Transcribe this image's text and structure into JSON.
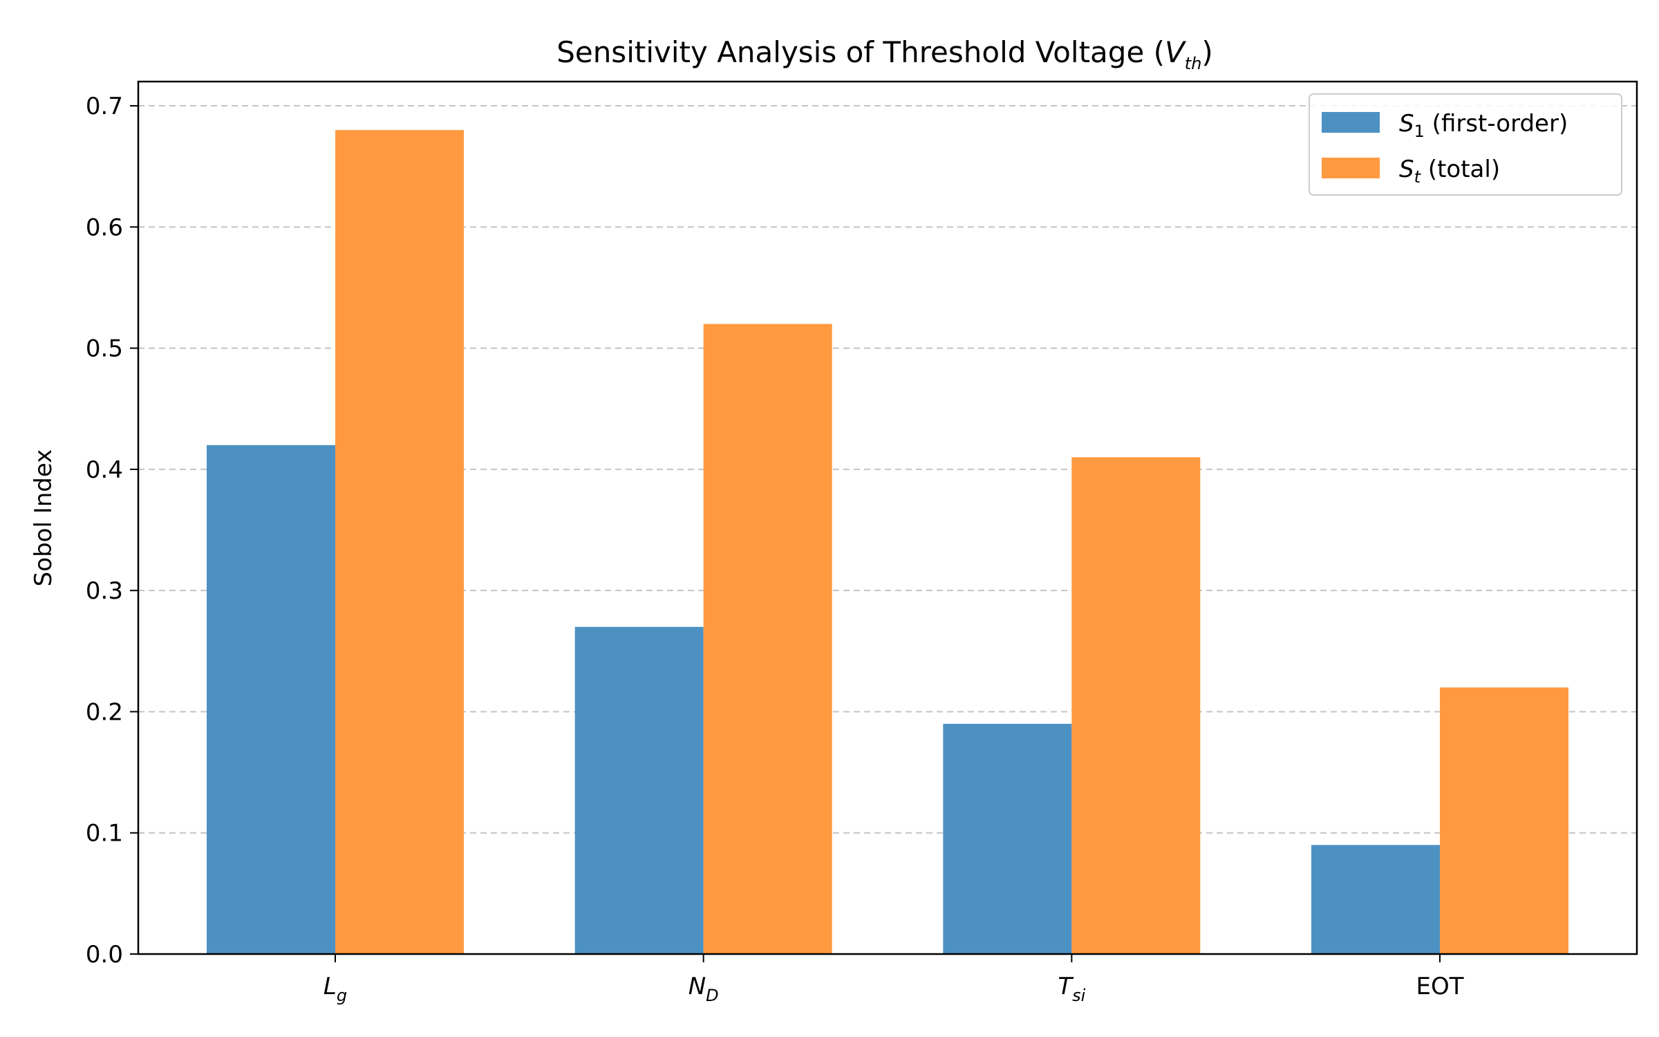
{
  "chart_data": {
    "type": "bar",
    "title": "Sensitivity Analysis of Threshold Voltage (",
    "title_var": "V",
    "title_var_sub": "th",
    "title_end": ")",
    "xlabel": "",
    "ylabel": "Sobol Index",
    "ylim": [
      0,
      0.72
    ],
    "yticks": [
      "0.0",
      "0.1",
      "0.2",
      "0.3",
      "0.4",
      "0.5",
      "0.6",
      "0.7"
    ],
    "ytick_values": [
      0,
      0.1,
      0.2,
      0.3,
      0.4,
      0.5,
      0.6,
      0.7
    ],
    "grid": "y-dashed",
    "legend_placement": "top-right",
    "categories": [
      {
        "main": "L",
        "sub": "g",
        "italic": true
      },
      {
        "main": "N",
        "sub": "D",
        "italic": true
      },
      {
        "main": "T",
        "sub": "si",
        "italic": true
      },
      {
        "main": "EOT",
        "sub": "",
        "italic": false
      }
    ],
    "series": [
      {
        "name_main": "S",
        "name_sub": "1",
        "name_rest": " (first-order)",
        "color": "#4d91c3",
        "values": [
          0.42,
          0.27,
          0.19,
          0.09
        ]
      },
      {
        "name_main": "S",
        "name_sub": "t",
        "name_rest": " (total)",
        "color": "#ff9a40",
        "values": [
          0.68,
          0.52,
          0.41,
          0.22
        ]
      }
    ]
  }
}
